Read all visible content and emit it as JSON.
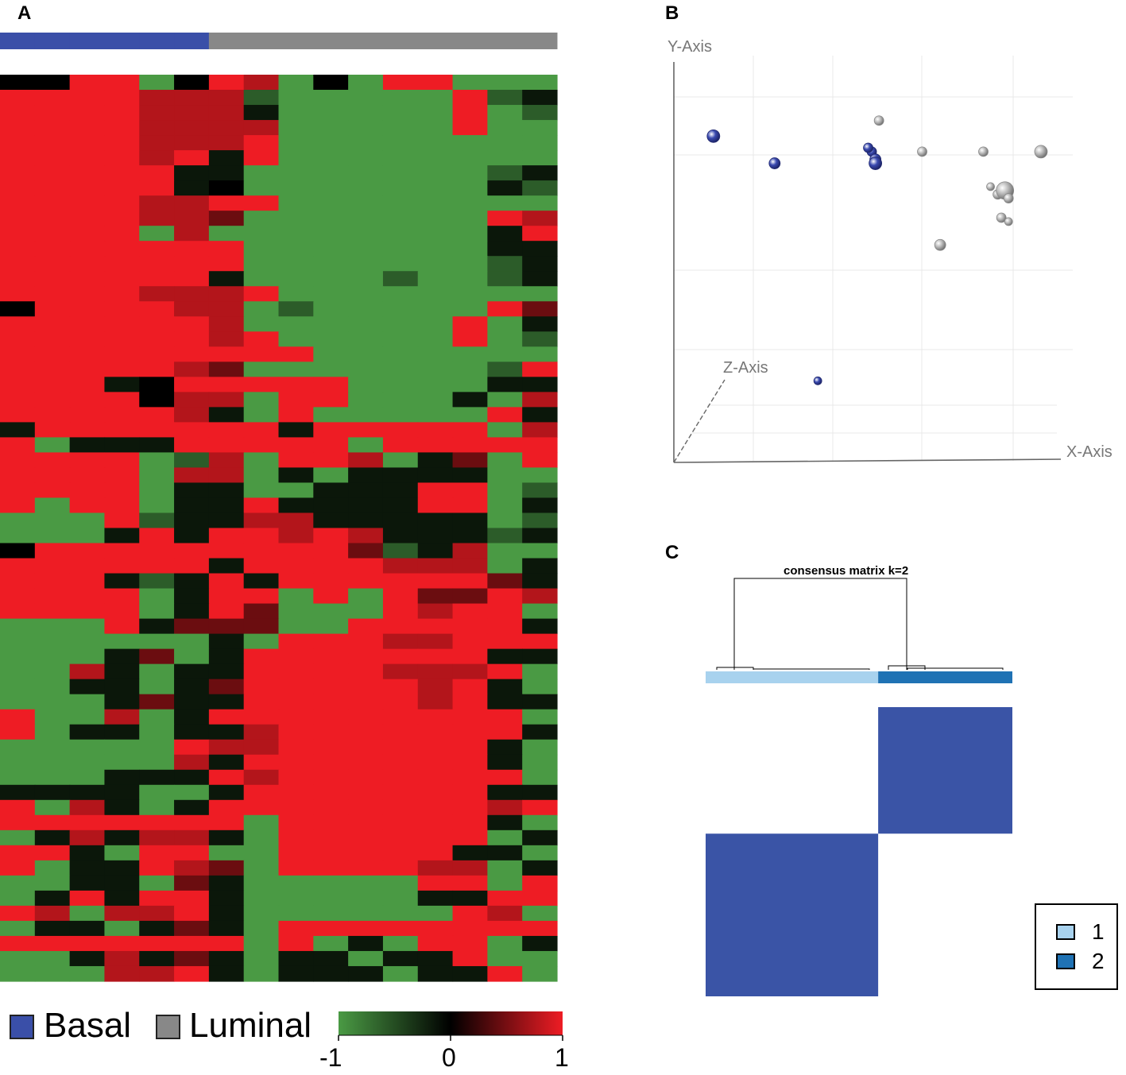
{
  "panels": {
    "a": {
      "letter": "A"
    },
    "b": {
      "letter": "B"
    },
    "c": {
      "letter": "C"
    }
  },
  "colors": {
    "basal": "#3a4fa8",
    "luminal": "#888888",
    "heat_low": "#4a9a44",
    "heat_mid": "#000000",
    "heat_high": "#ee1c24",
    "cluster1": "#a8d2ee",
    "cluster2": "#1f72b4",
    "consensus_fill": "#3a54a6",
    "pca_basal": "#3a4ab0",
    "pca_luminal": "#bdbdbd"
  },
  "chart_data": [
    {
      "type": "heatmap",
      "panel": "A",
      "groups": [
        "Basal",
        "Basal",
        "Basal",
        "Basal",
        "Basal",
        "Basal",
        "Luminal",
        "Luminal",
        "Luminal",
        "Luminal",
        "Luminal",
        "Luminal",
        "Luminal",
        "Luminal",
        "Luminal",
        "Luminal"
      ],
      "n_rows": 60,
      "n_cols": 16,
      "legend": [
        {
          "label": "Basal",
          "color": "#3a4fa8"
        },
        {
          "label": "Luminal",
          "color": "#888888"
        }
      ],
      "color_scale": {
        "min": -1,
        "max": 1,
        "ticks": [
          "-1",
          "0",
          "1"
        ]
      },
      "rows": [
        "0-hhl-hHl-lhhlll",
        "hhhhHHHLlllllhLm",
        "hhhhHHHmlllllhlL",
        "hhhhHHHHlllllhll",
        "hhhhHHHhllllllll",
        "hhhhHhmhllllllll",
        "hhhhhmmlllllllLm",
        "hhhhhm0lllllllmL",
        "hhhhHHhhllllllll",
        "hhhhHHMlllllllhH",
        "hhhhlHllllllllmh",
        "hhhhhhhlllllllmm",
        "hhhhhhhlllllllLm",
        "hhhhhhmllllLllLm",
        "hhhhHHHhllllllll",
        "0hhhhHHlLlllllhM",
        "hhhhhhHllllllhlm",
        "hhhhhhHhlllllhlL",
        "hhhhhhhhhlllllll",
        "hhhhhHMlllllllLh",
        "hhhm0hhhhhllllmm",
        "hhhh0HHlhhlllmlH",
        "hhhhhHmlhlllllhm",
        "mhhhhhhhmhhhhhlH",
        "hlmmmhhhhhlhhhhh",
        "hhhhlLHlhhHlmMlh",
        "hhhhlHHlmlmmmmll",
        "hhhhlmmllmmmhhlL",
        "hlhhlmmhmmmmhhlm",
        "lllhLmmHHmmmmmlL",
        "lllmhmhhHhHmmmLm",
        "0hhhhhhhhhMLmHll",
        "hhhhhhmhhhhHHHlm",
        "hhhmLmhmhhhhhhMm",
        "hhhhlmhhlhlhMMhH",
        "hhhhlmhMlllhHhhl",
        "lllhmMMMllhhhhhm",
        "llllllmlhhhHHhhh",
        "lllmMlmhhhhhhhmm",
        "llHmlmmhhhhHHHhl",
        "llmmlmMhhhhhHhml",
        "lllmMmmhhhhhHhmm",
        "hllHlmhhhhhhhhhl",
        "hlmmlmmHhhhhhhhm",
        "lllllhHHhhhhhhml",
        "lllllHmhhhhhhhml",
        "lllmmmhHhhhhhhhl",
        "mmmmllmhhhhhhhmm",
        "hlHmlmhhhhhhhhHh",
        "hhhhhhhlhhhhhhml",
        "lmHmHHmlhhhhhhlm",
        "hhmlhhllhhhhhmml",
        "hlmmhHMlhhhhHHlm",
        "llmmlMmlllllhhlh",
        "lmhmhhmlllllmmhh",
        "hHlHHhmllllllhHl",
        "lmmlmMmlhhhhhhhh",
        "hhhhhhhlhlmlhhlm",
        "llmHmMmlmmlmmhll",
        "lllHHhmlmmmlmmhl"
      ]
    },
    {
      "type": "scatter",
      "panel": "B",
      "xlabel": "X-Axis",
      "ylabel": "Y-Axis",
      "zlabel": "Z-Axis",
      "series": [
        {
          "name": "Basal",
          "color": "#3a4ab0",
          "points": [
            [
              0.11,
              0.84,
              8
            ],
            [
              0.28,
              0.77,
              7
            ],
            [
              0.55,
              0.8,
              6
            ],
            [
              0.56,
              0.78,
              7
            ],
            [
              0.56,
              0.77,
              8
            ],
            [
              0.54,
              0.81,
              6
            ],
            [
              0.4,
              0.21,
              5
            ]
          ]
        },
        {
          "name": "Luminal",
          "color": "#bdbdbd",
          "points": [
            [
              0.57,
              0.88,
              6
            ],
            [
              0.69,
              0.8,
              6
            ],
            [
              0.86,
              0.8,
              6
            ],
            [
              1.02,
              0.8,
              8
            ],
            [
              0.88,
              0.71,
              5
            ],
            [
              0.9,
              0.69,
              6
            ],
            [
              0.92,
              0.7,
              11
            ],
            [
              0.93,
              0.68,
              6
            ],
            [
              0.91,
              0.63,
              6
            ],
            [
              0.74,
              0.56,
              7
            ],
            [
              0.93,
              0.62,
              5
            ]
          ]
        }
      ]
    },
    {
      "type": "heatmap",
      "panel": "C",
      "title": "consensus matrix k=2",
      "clusters": [
        {
          "label": "1",
          "color": "#a8d2ee",
          "size": 9
        },
        {
          "label": "2",
          "color": "#1f72b4",
          "size": 7
        }
      ],
      "blocks": [
        {
          "rows": "2",
          "cols": "2",
          "value": 1
        },
        {
          "rows": "1",
          "cols": "1",
          "value": 1
        }
      ]
    }
  ]
}
